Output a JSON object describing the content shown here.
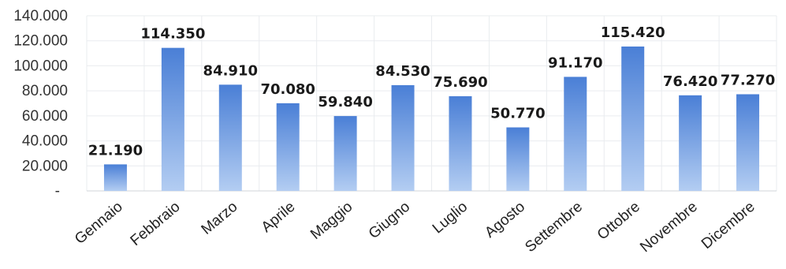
{
  "chart_data": {
    "type": "bar",
    "categories": [
      "Gennaio",
      "Febbraio",
      "Marzo",
      "Aprile",
      "Maggio",
      "Giugno",
      "Luglio",
      "Agosto",
      "Settembre",
      "Ottobre",
      "Novembre",
      "Dicembre"
    ],
    "values": [
      21190,
      114350,
      84910,
      70080,
      59840,
      84530,
      75690,
      50770,
      91170,
      115420,
      76420,
      77270
    ],
    "value_labels": [
      "21.190",
      "114.350",
      "84.910",
      "70.080",
      "59.840",
      "84.530",
      "75.690",
      "50.770",
      "91.170",
      "115.420",
      "76.420",
      "77.270"
    ],
    "yticks": [
      0,
      20000,
      40000,
      60000,
      80000,
      100000,
      120000,
      140000
    ],
    "ytick_labels": [
      "-",
      "20.000",
      "40.000",
      "60.000",
      "80.000",
      "100.000",
      "120.000",
      "140.000"
    ],
    "ylim": [
      0,
      140000
    ],
    "title": "",
    "xlabel": "",
    "ylabel": "",
    "grid": true,
    "legend": "none",
    "bar_color_top": "#4a7fd6",
    "bar_color_bottom": "#b3cdf2"
  }
}
